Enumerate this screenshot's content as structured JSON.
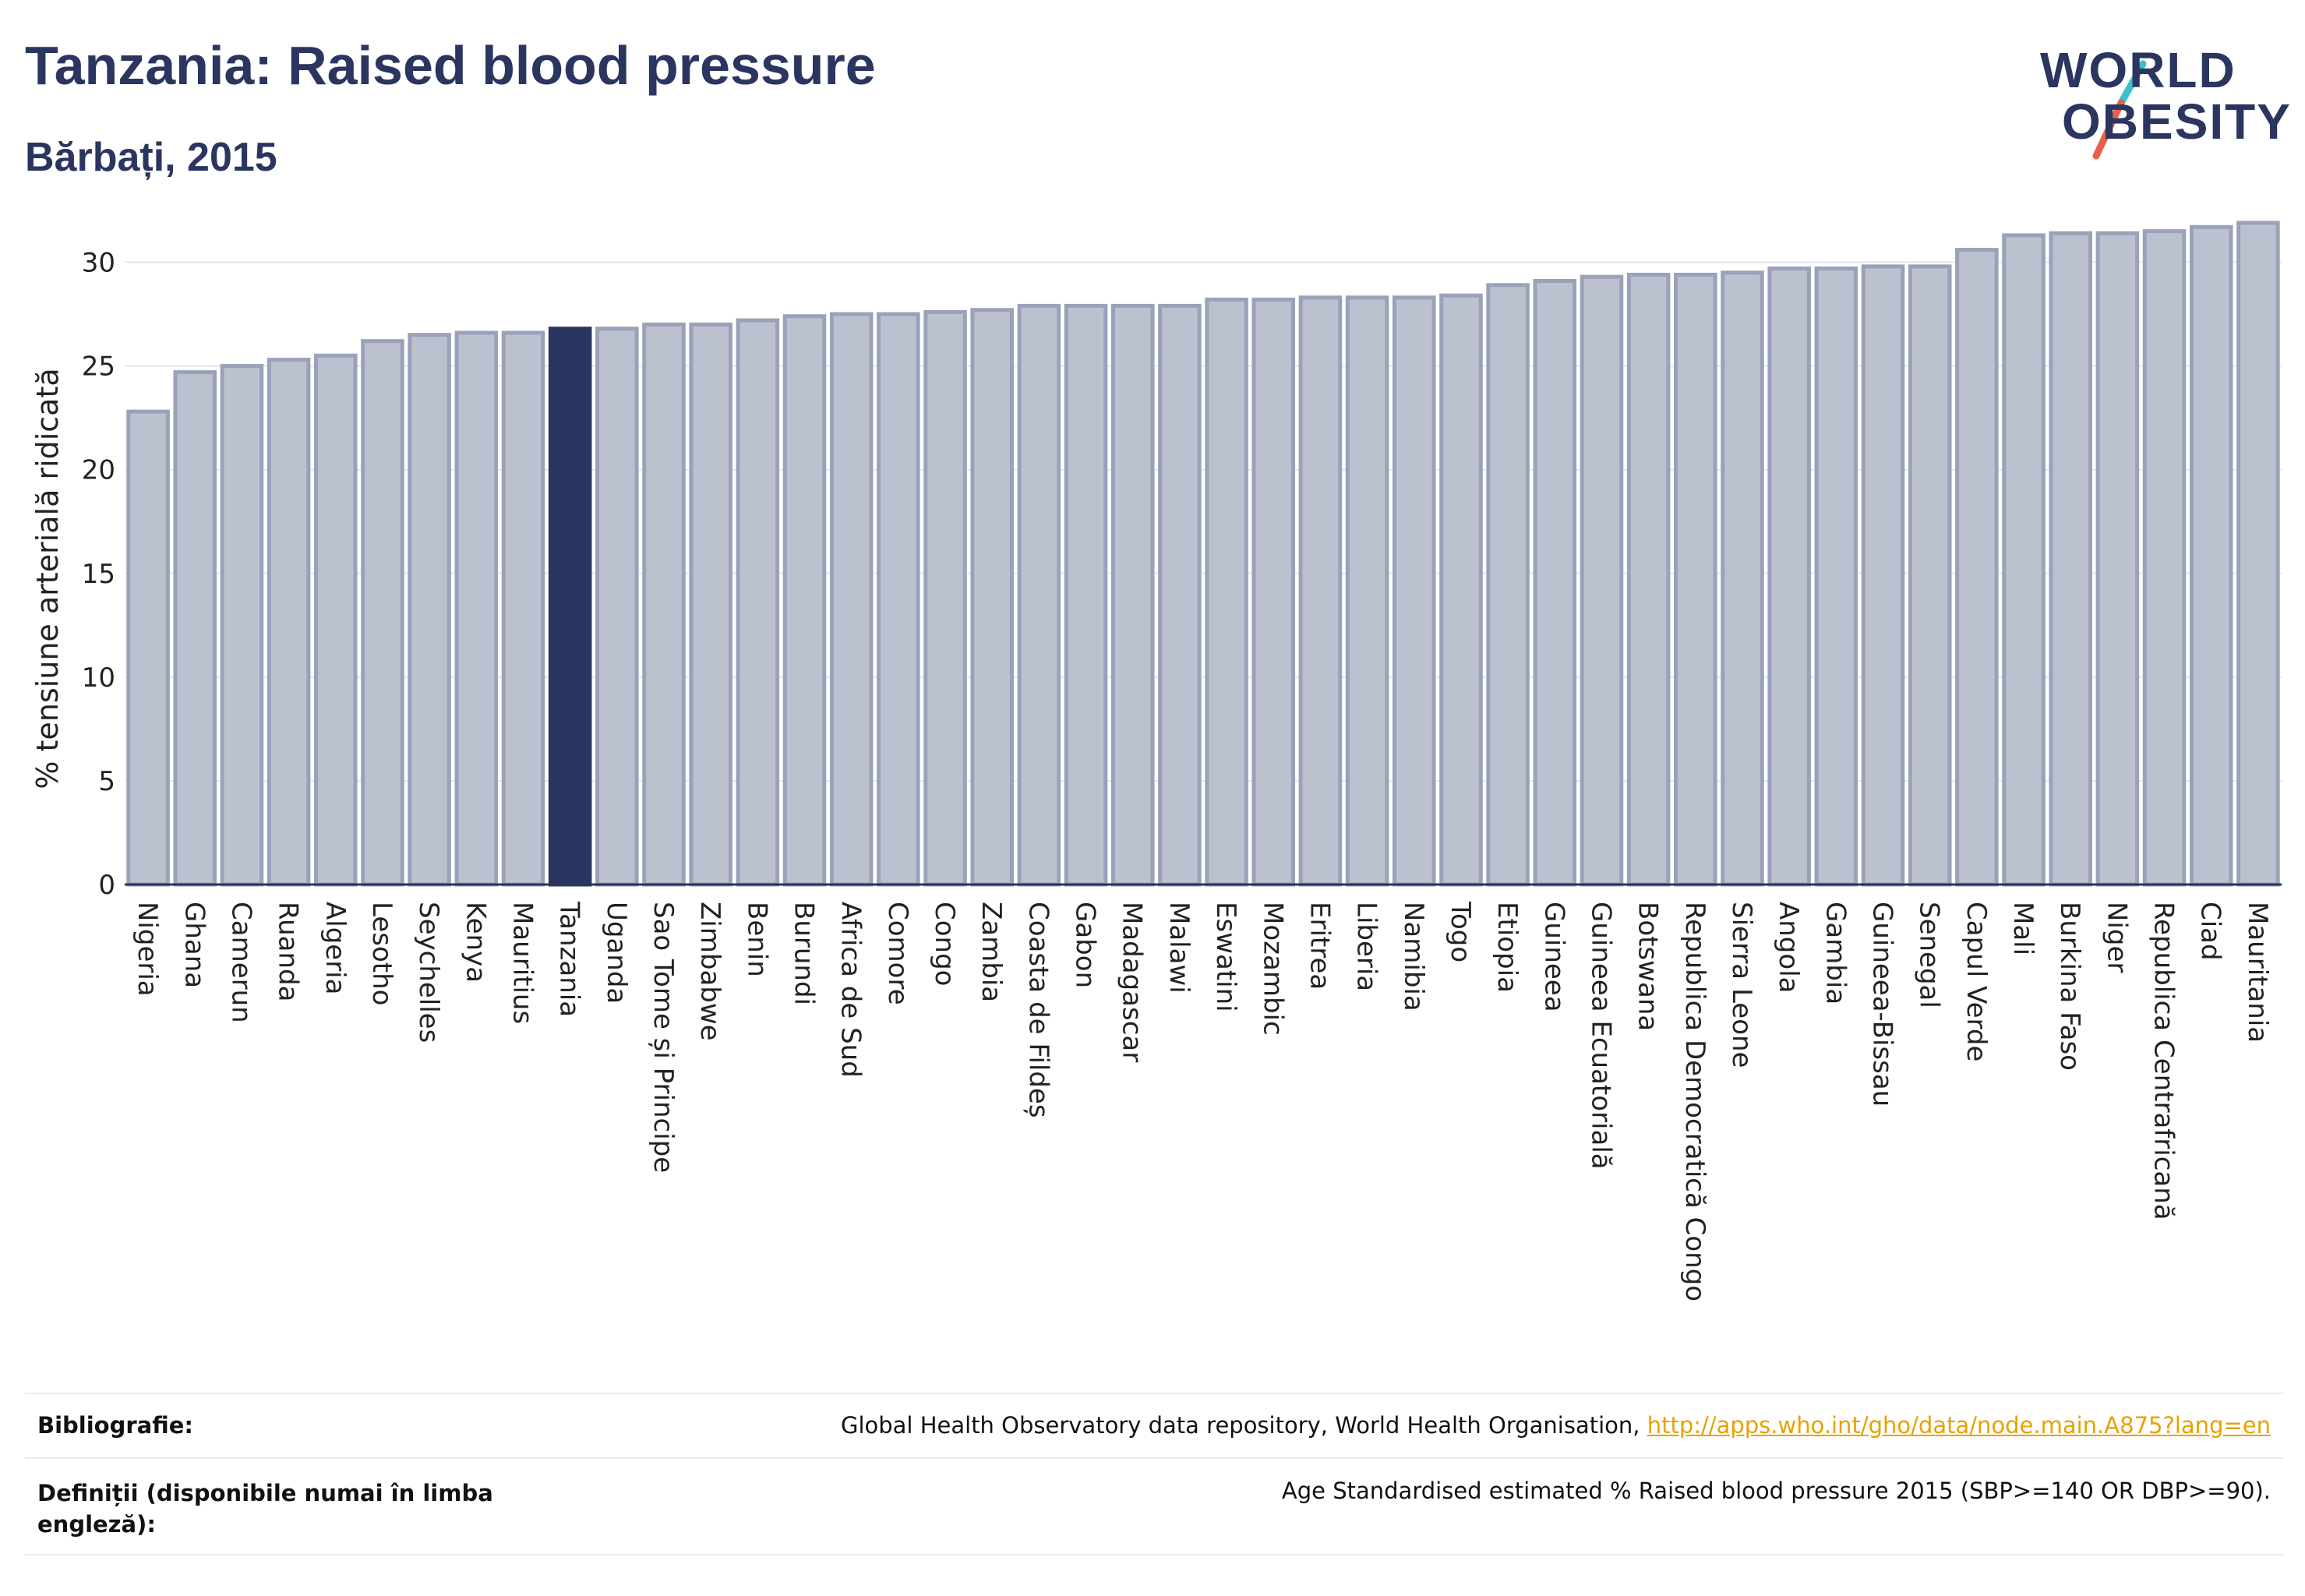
{
  "header": {
    "title": "Tanzania: Raised blood pressure",
    "subtitle": "Bărbați, 2015"
  },
  "logo": {
    "line1": "WORLD",
    "line2": "OBESITY",
    "slash_colors": [
      "#3cc1c6",
      "#e8604c"
    ]
  },
  "chart_data": {
    "type": "bar",
    "ylabel": "% tensiune arterială ridicată",
    "ylim": [
      0,
      32.5
    ],
    "yticks": [
      0,
      5,
      10,
      15,
      20,
      25,
      30
    ],
    "grid": true,
    "highlight": "Tanzania",
    "colors": {
      "bar": "#bcc1d0",
      "bar_edge": "#9aa1b9",
      "highlight": "#2a3560",
      "axis": "#2a3560",
      "grid": "#e3e6ee"
    },
    "categories": [
      "Nigeria",
      "Ghana",
      "Camerun",
      "Ruanda",
      "Algeria",
      "Lesotho",
      "Seychelles",
      "Kenya",
      "Mauritius",
      "Tanzania",
      "Uganda",
      "Sao Tome și Principe",
      "Zimbabwe",
      "Benin",
      "Burundi",
      "Africa de Sud",
      "Comore",
      "Congo",
      "Zambia",
      "Coasta de Fildeș",
      "Gabon",
      "Madagascar",
      "Malawi",
      "Eswatini",
      "Mozambic",
      "Eritrea",
      "Liberia",
      "Namibia",
      "Togo",
      "Etiopia",
      "Guineea",
      "Guineea Ecuatorială",
      "Botswana",
      "Republica Democratică Congo",
      "Sierra Leone",
      "Angola",
      "Gambia",
      "Guineea-Bissau",
      "Senegal",
      "Capul Verde",
      "Mali",
      "Burkina Faso",
      "Niger",
      "Republica Centrafricană",
      "Ciad",
      "Mauritania"
    ],
    "values": [
      22.8,
      24.7,
      25.0,
      25.3,
      25.5,
      26.2,
      26.5,
      26.6,
      26.6,
      26.8,
      26.8,
      27.0,
      27.0,
      27.2,
      27.4,
      27.5,
      27.5,
      27.6,
      27.7,
      27.9,
      27.9,
      27.9,
      27.9,
      28.2,
      28.2,
      28.3,
      28.3,
      28.3,
      28.4,
      28.9,
      29.1,
      29.3,
      29.4,
      29.4,
      29.5,
      29.7,
      29.7,
      29.8,
      29.8,
      30.6,
      31.3,
      31.4,
      31.4,
      31.5,
      31.7,
      31.9
    ]
  },
  "footer": {
    "bibliography_label": "Bibliografie:",
    "bibliography_text": "Global Health Observatory data repository, World Health Organisation, ",
    "bibliography_link": "http://apps.who.int/gho/data/node.main.A875?lang=en",
    "definitions_label": "Definiții (disponibile numai în limba engleză):",
    "definitions_text": "Age Standardised estimated % Raised blood pressure 2015 (SBP>=140 OR DBP>=90)."
  }
}
